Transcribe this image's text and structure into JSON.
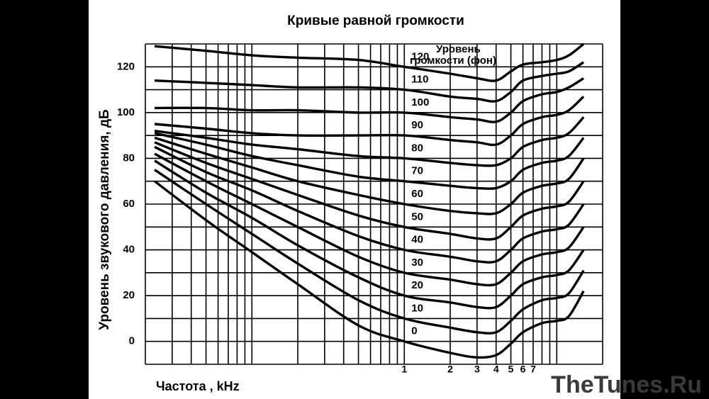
{
  "chart_data": {
    "type": "line",
    "title": "Кривые равной громкости",
    "y_label": "Уровень звукового давления, дБ",
    "x_label": "Частота , kHz",
    "annotation": [
      "Уровень",
      "громкости (фон)"
    ],
    "watermark": "TheTunes.Ru",
    "log_x": true,
    "grid": true,
    "xlim": [
      0.02,
      20
    ],
    "ylim": [
      -10,
      130
    ],
    "xticks": [
      1,
      2,
      3,
      4,
      5,
      6,
      7
    ],
    "xgrid": [
      0.02,
      0.03,
      0.04,
      0.05,
      0.06,
      0.07,
      0.08,
      0.09,
      0.1,
      0.2,
      0.3,
      0.4,
      0.5,
      0.6,
      0.7,
      0.8,
      0.9,
      1,
      2,
      3,
      4,
      5,
      6,
      7,
      8,
      9,
      10,
      20
    ],
    "yticks": [
      0,
      20,
      40,
      60,
      80,
      100,
      120
    ],
    "ygrid": [
      -10,
      0,
      10,
      20,
      30,
      40,
      50,
      60,
      70,
      80,
      90,
      100,
      110,
      120,
      130
    ],
    "x": [
      0.023,
      0.05,
      0.1,
      0.2,
      0.5,
      1,
      2,
      3,
      4,
      5,
      6,
      8,
      10,
      12,
      15
    ],
    "series": [
      {
        "name": "0",
        "color": "#000000",
        "values": [
          70,
          53,
          39,
          25,
          7,
          0,
          -5,
          -7,
          -6,
          -1,
          4,
          8,
          9,
          11,
          22
        ]
      },
      {
        "name": "10",
        "color": "#000000",
        "values": [
          75,
          60,
          47,
          34,
          18,
          10,
          6,
          4,
          4,
          9,
          14,
          18,
          19,
          21,
          31
        ]
      },
      {
        "name": "20",
        "color": "#000000",
        "values": [
          79,
          65,
          54,
          42,
          28,
          20,
          17,
          15,
          15,
          20,
          25,
          28,
          29,
          31,
          40
        ]
      },
      {
        "name": "30",
        "color": "#000000",
        "values": [
          82,
          70,
          60,
          50,
          37,
          30,
          27,
          25,
          25,
          30,
          35,
          38,
          39,
          41,
          50
        ]
      },
      {
        "name": "40",
        "color": "#000000",
        "values": [
          85,
          74,
          66,
          57,
          46,
          40,
          37,
          35,
          35,
          40,
          45,
          48,
          49,
          51,
          60
        ]
      },
      {
        "name": "50",
        "color": "#000000",
        "values": [
          87,
          78,
          71,
          64,
          55,
          50,
          47,
          45,
          45,
          50,
          55,
          58,
          59,
          61,
          70
        ]
      },
      {
        "name": "60",
        "color": "#000000",
        "values": [
          89,
          82,
          76,
          70,
          64,
          60,
          57,
          56,
          56,
          60,
          65,
          68,
          69,
          71,
          80
        ]
      },
      {
        "name": "70",
        "color": "#000000",
        "values": [
          91,
          86,
          81,
          77,
          72,
          70,
          68,
          67,
          67,
          70,
          75,
          78,
          79,
          81,
          89
        ]
      },
      {
        "name": "80",
        "color": "#000000",
        "values": [
          92,
          89,
          86,
          84,
          81,
          80,
          78,
          77,
          77,
          80,
          85,
          88,
          89,
          91,
          98
        ]
      },
      {
        "name": "90",
        "color": "#000000",
        "values": [
          95,
          93,
          91,
          90,
          90,
          90,
          88,
          87,
          86,
          90,
          95,
          98,
          99,
          101,
          107
        ]
      },
      {
        "name": "100",
        "color": "#000000",
        "values": [
          102,
          102,
          101,
          101,
          100,
          100,
          98,
          97,
          96,
          100,
          105,
          108,
          109,
          111,
          115
        ]
      },
      {
        "name": "110",
        "color": "#000000",
        "values": [
          114,
          113,
          112,
          111,
          111,
          110,
          107,
          106,
          105,
          109,
          114,
          116,
          117,
          118,
          122
        ]
      },
      {
        "name": "120",
        "color": "#000000",
        "values": [
          129,
          127,
          125,
          124,
          123,
          120,
          117,
          115,
          114,
          118,
          121,
          122,
          123,
          125,
          130
        ]
      }
    ]
  }
}
